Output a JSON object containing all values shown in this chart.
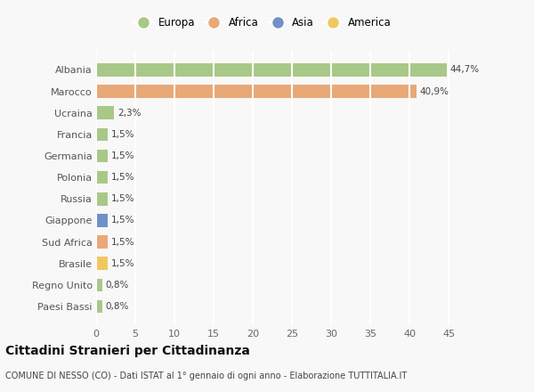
{
  "categories": [
    "Paesi Bassi",
    "Regno Unito",
    "Brasile",
    "Sud Africa",
    "Giappone",
    "Russia",
    "Polonia",
    "Germania",
    "Francia",
    "Ucraina",
    "Marocco",
    "Albania"
  ],
  "values": [
    0.8,
    0.8,
    1.5,
    1.5,
    1.5,
    1.5,
    1.5,
    1.5,
    1.5,
    2.3,
    40.9,
    44.7
  ],
  "colors": [
    "#a8c888",
    "#a8c888",
    "#f0c860",
    "#e8a878",
    "#7090c8",
    "#a8c888",
    "#a8c888",
    "#a8c888",
    "#a8c888",
    "#a8c888",
    "#e8a878",
    "#a8c888"
  ],
  "labels": [
    "0,8%",
    "0,8%",
    "1,5%",
    "1,5%",
    "1,5%",
    "1,5%",
    "1,5%",
    "1,5%",
    "1,5%",
    "2,3%",
    "40,9%",
    "44,7%"
  ],
  "legend": [
    {
      "label": "Europa",
      "color": "#a8c888"
    },
    {
      "label": "Africa",
      "color": "#e8a878"
    },
    {
      "label": "Asia",
      "color": "#7090c8"
    },
    {
      "label": "America",
      "color": "#f0c860"
    }
  ],
  "xlim": [
    0,
    47
  ],
  "xticks": [
    0,
    5,
    10,
    15,
    20,
    25,
    30,
    35,
    40,
    45
  ],
  "title": "Cittadini Stranieri per Cittadinanza",
  "subtitle": "COMUNE DI NESSO (CO) - Dati ISTAT al 1° gennaio di ogni anno - Elaborazione TUTTITALIA.IT",
  "bg_color": "#f8f8f8",
  "plot_bg_color": "#f8f8f8",
  "grid_color": "#ffffff",
  "bar_height": 0.6,
  "label_fontsize": 7.5,
  "tick_fontsize": 8,
  "title_fontsize": 10,
  "subtitle_fontsize": 7,
  "legend_fontsize": 8.5
}
